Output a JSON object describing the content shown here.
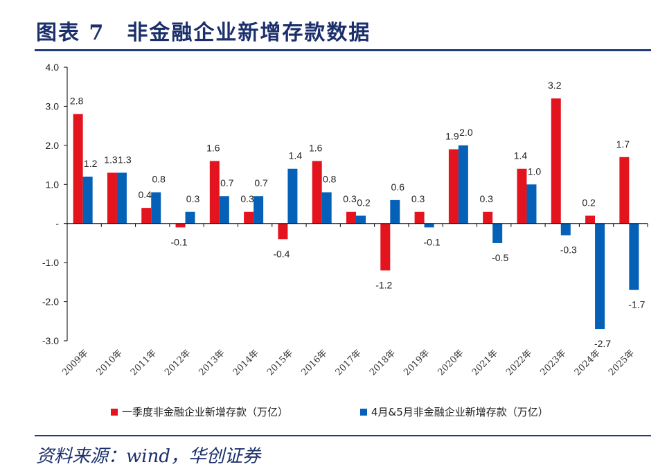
{
  "header": {
    "title": "图表 7　非金融企业新增存款数据"
  },
  "footer": {
    "source": "资料来源：wind，华创证券"
  },
  "chart_data": {
    "type": "bar",
    "title": "",
    "xlabel": "",
    "ylabel": "",
    "ylim": [
      -3,
      4
    ],
    "yticks": [
      {
        "v": 4,
        "label": "4.0"
      },
      {
        "v": 3,
        "label": "3.0"
      },
      {
        "v": 2,
        "label": "2.0"
      },
      {
        "v": 1,
        "label": "1.0"
      },
      {
        "v": 0,
        "label": "-"
      },
      {
        "v": -1,
        "label": "-1.0"
      },
      {
        "v": -2,
        "label": "-2.0"
      },
      {
        "v": -3,
        "label": "-3.0"
      }
    ],
    "categories": [
      "2009年",
      "2010年",
      "2011年",
      "2012年",
      "2013年",
      "2014年",
      "2015年",
      "2016年",
      "2017年",
      "2018年",
      "2019年",
      "2020年",
      "2021年",
      "2022年",
      "2023年",
      "2024年",
      "2025年"
    ],
    "series": [
      {
        "name": "一季度非金融企业新增存款（万亿）",
        "color": "#e3141e",
        "values": [
          2.8,
          1.3,
          0.4,
          -0.1,
          1.6,
          0.3,
          -0.4,
          1.6,
          0.3,
          -1.2,
          0.3,
          1.9,
          0.3,
          1.4,
          3.2,
          0.2,
          1.7
        ]
      },
      {
        "name": "4月&5月非金融企业新增存款（万亿）",
        "color": "#0560b8",
        "values": [
          1.2,
          1.3,
          0.8,
          0.3,
          0.7,
          0.7,
          1.4,
          0.8,
          0.2,
          0.6,
          -0.1,
          2.0,
          -0.5,
          1.0,
          -0.3,
          -2.7,
          -1.7
        ]
      }
    ],
    "grid": false,
    "legend": "bottom"
  }
}
